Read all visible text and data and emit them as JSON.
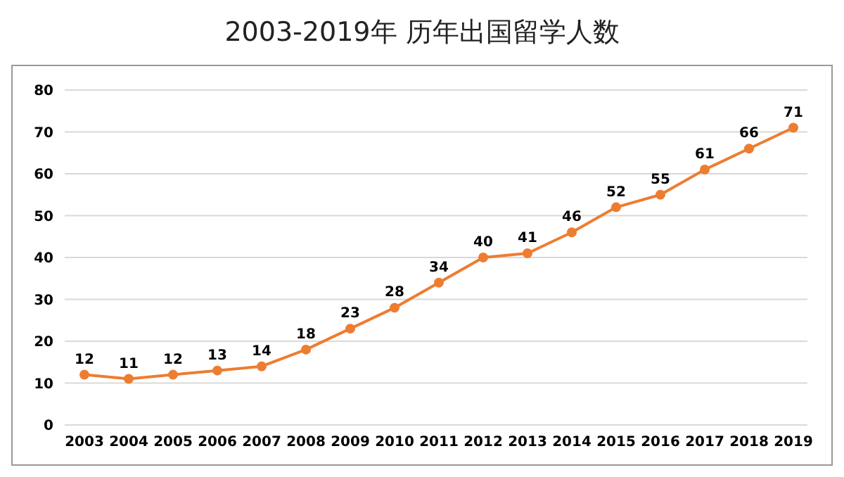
{
  "chart_data": {
    "type": "line",
    "title": "2003-2019年 历年出国留学人数",
    "categories": [
      "2003",
      "2004",
      "2005",
      "2006",
      "2007",
      "2008",
      "2009",
      "2010",
      "2011",
      "2012",
      "2013",
      "2014",
      "2015",
      "2016",
      "2017",
      "2018",
      "2019"
    ],
    "series": [
      {
        "color": "#ed7d31",
        "values": [
          12,
          11,
          12,
          13,
          14,
          18,
          23,
          28,
          34,
          40,
          41,
          46,
          52,
          55,
          61,
          66,
          71
        ]
      }
    ],
    "ylim": [
      0,
      80
    ],
    "yticks": [
      0,
      10,
      20,
      30,
      40,
      50,
      60,
      70,
      80
    ],
    "grid": "y",
    "legend": false,
    "marker": "circle",
    "line_style": "solid",
    "data_labels": true
  }
}
